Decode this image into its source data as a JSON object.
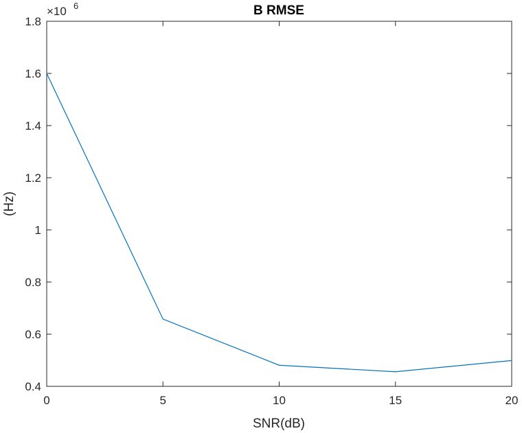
{
  "chart_data": {
    "type": "line",
    "title": "B RMSE",
    "xlabel": "SNR(dB)",
    "ylabel": "(Hz)",
    "y_exponent_label": "×10",
    "y_exponent_power": "6",
    "xlim": [
      0,
      20
    ],
    "ylim": [
      0.4,
      1.8
    ],
    "x_ticks": [
      0,
      5,
      10,
      15,
      20
    ],
    "y_ticks": [
      0.4,
      0.6,
      0.8,
      1.0,
      1.2,
      1.4,
      1.6,
      1.8
    ],
    "x_tick_labels": [
      "0",
      "5",
      "10",
      "15",
      "20"
    ],
    "y_tick_labels": [
      "0.4",
      "0.6",
      "0.8",
      "1",
      "1.2",
      "1.4",
      "1.6",
      "1.8"
    ],
    "grid": false,
    "series": [
      {
        "color": "#0072bd",
        "x": [
          0,
          5,
          10,
          15,
          20
        ],
        "y": [
          1.6,
          0.658,
          0.481,
          0.456,
          0.499
        ]
      }
    ]
  }
}
